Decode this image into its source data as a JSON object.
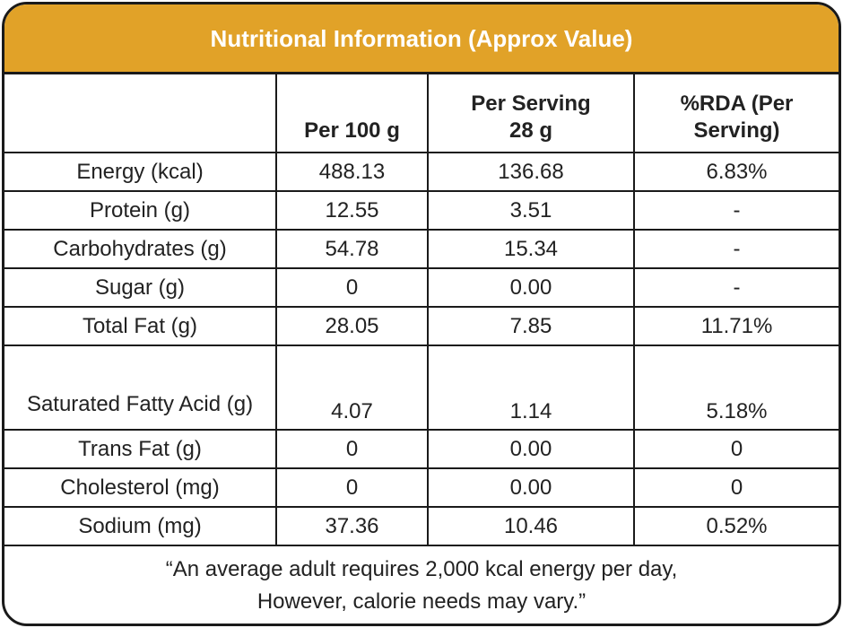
{
  "title": "Nutritional Information (Approx Value)",
  "columns": [
    "",
    "Per 100 g",
    "Per Serving 28 g",
    "%RDA (Per Serving)"
  ],
  "column_lines": [
    [
      "",
      ""
    ],
    [
      "Per 100 g",
      ""
    ],
    [
      "Per Serving",
      "28 g"
    ],
    [
      "%RDA (Per",
      "Serving)"
    ]
  ],
  "rows": [
    {
      "nutrient": "Energy (kcal)",
      "per_100g": "488.13",
      "per_serving": "136.68",
      "rda": "6.83%"
    },
    {
      "nutrient": "Protein (g)",
      "per_100g": "12.55",
      "per_serving": "3.51",
      "rda": "-"
    },
    {
      "nutrient": "Carbohydrates (g)",
      "per_100g": "54.78",
      "per_serving": "15.34",
      "rda": "-"
    },
    {
      "nutrient": "Sugar (g)",
      "per_100g": "0",
      "per_serving": "0.00",
      "rda": "-"
    },
    {
      "nutrient": "Total Fat (g)",
      "per_100g": "28.05",
      "per_serving": "7.85",
      "rda": "11.71%"
    },
    {
      "nutrient": "Saturated Fatty Acid (g)",
      "per_100g": "4.07",
      "per_serving": "1.14",
      "rda": "5.18%"
    },
    {
      "nutrient": "Trans Fat (g)",
      "per_100g": "0",
      "per_serving": "0.00",
      "rda": "0"
    },
    {
      "nutrient": "Cholesterol (mg)",
      "per_100g": "0",
      "per_serving": "0.00",
      "rda": "0"
    },
    {
      "nutrient": "Sodium (mg)",
      "per_100g": "37.36",
      "per_serving": "10.46",
      "rda": "0.52%"
    }
  ],
  "footer": {
    "line1": "“An average adult requires 2,000 kcal energy per day,",
    "line2": "However, calorie needs may vary.”"
  },
  "colors": {
    "header_bg": "#E1A228",
    "header_text": "#FFFFFF",
    "border": "#1A1A1A"
  }
}
